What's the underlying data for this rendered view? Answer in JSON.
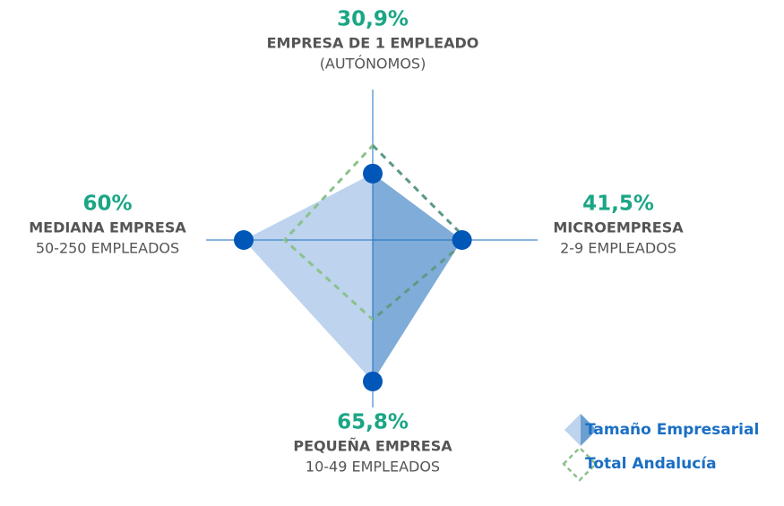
{
  "chart_data": {
    "type": "radar",
    "categories": [
      "EMPRESA DE 1 EMPLEADO",
      "MICROEMPRESA",
      "PEQUEÑA EMPRESA",
      "MEDIANA EMPRESA"
    ],
    "sublabels": [
      "(AUTÓNOMOS)",
      "2-9 EMPLEADOS",
      "10-49 EMPLEADOS",
      "50-250 EMPLEADOS"
    ],
    "rlim": [
      0,
      70
    ],
    "series": [
      {
        "name": "Tamaño Empresarial",
        "color": "#bdd3ee",
        "values": [
          30.9,
          41.5,
          65.8,
          60
        ],
        "value_labels": [
          "30,9%",
          "41,5%",
          "65,8%",
          "60%"
        ]
      },
      {
        "name": "Total Andalucía",
        "color": "#8cc18c",
        "values": [
          44,
          44,
          37,
          41
        ]
      }
    ]
  }
}
